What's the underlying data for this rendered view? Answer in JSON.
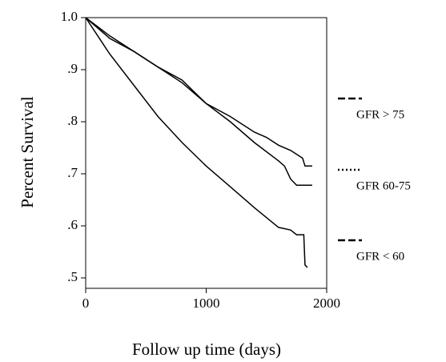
{
  "chart_data": {
    "type": "line",
    "xlabel": "Follow up time (days)",
    "ylabel": "Percent Survival",
    "xlim": [
      0,
      2000
    ],
    "xticks": [
      0,
      1000,
      2000
    ],
    "ylim": [
      0.48,
      1.0
    ],
    "yticks": [
      {
        "value": 1.0,
        "label": "1.0"
      },
      {
        "value": 0.9,
        "label": ".9"
      },
      {
        "value": 0.8,
        "label": ".8"
      },
      {
        "value": 0.7,
        "label": ".7"
      },
      {
        "value": 0.6,
        "label": ".6"
      },
      {
        "value": 0.5,
        "label": ".5"
      }
    ],
    "legend": "right",
    "series": [
      {
        "name": "GFR > 75",
        "color": "#000000",
        "dash": "dashed",
        "x": [
          0,
          200,
          400,
          600,
          800,
          1000,
          1200,
          1400,
          1500,
          1600,
          1700,
          1800,
          1820,
          1880
        ],
        "values": [
          1.0,
          0.965,
          0.935,
          0.905,
          0.88,
          0.835,
          0.81,
          0.78,
          0.77,
          0.755,
          0.745,
          0.73,
          0.715,
          0.715
        ]
      },
      {
        "name": "GFR 60-75",
        "color": "#000000",
        "dash": "dotted",
        "x": [
          0,
          200,
          400,
          600,
          800,
          1000,
          1200,
          1400,
          1600,
          1650,
          1700,
          1750,
          1880
        ],
        "values": [
          1.0,
          0.96,
          0.935,
          0.905,
          0.875,
          0.835,
          0.8,
          0.76,
          0.725,
          0.715,
          0.69,
          0.678,
          0.678
        ]
      },
      {
        "name": "GFR < 60",
        "color": "#000000",
        "dash": "dashed",
        "x": [
          0,
          200,
          400,
          600,
          800,
          1000,
          1200,
          1400,
          1600,
          1700,
          1750,
          1810,
          1820,
          1840
        ],
        "values": [
          1.0,
          0.93,
          0.87,
          0.81,
          0.76,
          0.715,
          0.675,
          0.635,
          0.597,
          0.592,
          0.583,
          0.583,
          0.525,
          0.52
        ]
      }
    ]
  }
}
